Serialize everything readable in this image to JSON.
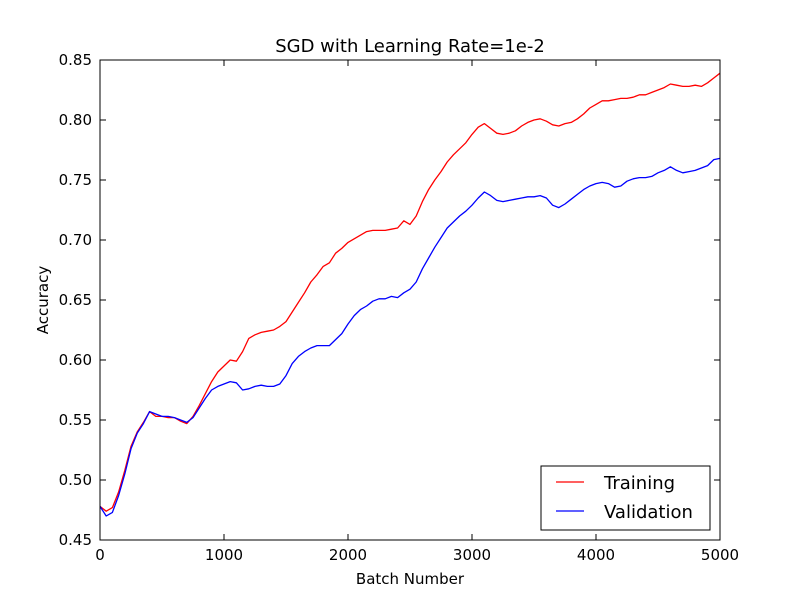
{
  "chart_data": {
    "type": "line",
    "title": "SGD with Learning Rate=1e-2",
    "xlabel": "Batch Number",
    "ylabel": "Accuracy",
    "xlim": [
      0,
      5000
    ],
    "ylim": [
      0.45,
      0.85
    ],
    "xticks": [
      0,
      1000,
      2000,
      3000,
      4000,
      5000
    ],
    "xtick_labels": [
      "0",
      "1000",
      "2000",
      "3000",
      "4000",
      "5000"
    ],
    "yticks": [
      0.45,
      0.5,
      0.55,
      0.6,
      0.65,
      0.7,
      0.75,
      0.8,
      0.85
    ],
    "ytick_labels": [
      "0.45",
      "0.50",
      "0.55",
      "0.60",
      "0.65",
      "0.70",
      "0.75",
      "0.80",
      "0.85"
    ],
    "grid": false,
    "legend_position": "lower-right",
    "series": [
      {
        "name": "Training",
        "color": "#ff0000",
        "x": [
          0,
          50,
          100,
          150,
          200,
          250,
          300,
          350,
          400,
          450,
          500,
          550,
          600,
          650,
          700,
          750,
          800,
          850,
          900,
          950,
          1000,
          1050,
          1100,
          1150,
          1200,
          1250,
          1300,
          1350,
          1400,
          1450,
          1500,
          1550,
          1600,
          1650,
          1700,
          1750,
          1800,
          1850,
          1900,
          1950,
          2000,
          2050,
          2100,
          2150,
          2200,
          2250,
          2300,
          2350,
          2400,
          2450,
          2500,
          2550,
          2600,
          2650,
          2700,
          2750,
          2800,
          2850,
          2900,
          2950,
          3000,
          3050,
          3100,
          3150,
          3200,
          3250,
          3300,
          3350,
          3400,
          3450,
          3500,
          3550,
          3600,
          3650,
          3700,
          3750,
          3800,
          3850,
          3900,
          3950,
          4000,
          4050,
          4100,
          4150,
          4200,
          4250,
          4300,
          4350,
          4400,
          4450,
          4500,
          4550,
          4600,
          4650,
          4700,
          4750,
          4800,
          4850,
          4900,
          4950,
          5000
        ],
        "values": [
          0.478,
          0.474,
          0.477,
          0.49,
          0.508,
          0.528,
          0.54,
          0.548,
          0.557,
          0.553,
          0.553,
          0.552,
          0.552,
          0.549,
          0.547,
          0.553,
          0.562,
          0.572,
          0.582,
          0.59,
          0.595,
          0.6,
          0.599,
          0.607,
          0.618,
          0.621,
          0.623,
          0.624,
          0.625,
          0.628,
          0.632,
          0.64,
          0.648,
          0.656,
          0.665,
          0.671,
          0.678,
          0.681,
          0.689,
          0.693,
          0.698,
          0.701,
          0.704,
          0.707,
          0.708,
          0.708,
          0.708,
          0.709,
          0.71,
          0.716,
          0.713,
          0.72,
          0.732,
          0.742,
          0.75,
          0.757,
          0.765,
          0.771,
          0.776,
          0.781,
          0.788,
          0.794,
          0.797,
          0.793,
          0.789,
          0.788,
          0.789,
          0.791,
          0.795,
          0.798,
          0.8,
          0.801,
          0.799,
          0.796,
          0.795,
          0.797,
          0.798,
          0.801,
          0.805,
          0.81,
          0.813,
          0.816,
          0.816,
          0.817,
          0.818,
          0.818,
          0.819,
          0.821,
          0.821,
          0.823,
          0.825,
          0.827,
          0.83,
          0.829,
          0.828,
          0.828,
          0.829,
          0.828,
          0.831,
          0.835,
          0.839
        ]
      },
      {
        "name": "Validation",
        "color": "#0000ff",
        "x": [
          0,
          50,
          100,
          150,
          200,
          250,
          300,
          350,
          400,
          450,
          500,
          550,
          600,
          650,
          700,
          750,
          800,
          850,
          900,
          950,
          1000,
          1050,
          1100,
          1150,
          1200,
          1250,
          1300,
          1350,
          1400,
          1450,
          1500,
          1550,
          1600,
          1650,
          1700,
          1750,
          1800,
          1850,
          1900,
          1950,
          2000,
          2050,
          2100,
          2150,
          2200,
          2250,
          2300,
          2350,
          2400,
          2450,
          2500,
          2550,
          2600,
          2650,
          2700,
          2750,
          2800,
          2850,
          2900,
          2950,
          3000,
          3050,
          3100,
          3150,
          3200,
          3250,
          3300,
          3350,
          3400,
          3450,
          3500,
          3550,
          3600,
          3650,
          3700,
          3750,
          3800,
          3850,
          3900,
          3950,
          4000,
          4050,
          4100,
          4150,
          4200,
          4250,
          4300,
          4350,
          4400,
          4450,
          4500,
          4550,
          4600,
          4650,
          4700,
          4750,
          4800,
          4850,
          4900,
          4950,
          5000
        ],
        "values": [
          0.478,
          0.47,
          0.473,
          0.487,
          0.505,
          0.526,
          0.539,
          0.547,
          0.557,
          0.555,
          0.553,
          0.553,
          0.552,
          0.55,
          0.548,
          0.552,
          0.56,
          0.568,
          0.575,
          0.578,
          0.58,
          0.582,
          0.581,
          0.575,
          0.576,
          0.578,
          0.579,
          0.578,
          0.578,
          0.58,
          0.587,
          0.597,
          0.603,
          0.607,
          0.61,
          0.612,
          0.612,
          0.612,
          0.617,
          0.622,
          0.63,
          0.637,
          0.642,
          0.645,
          0.649,
          0.651,
          0.651,
          0.653,
          0.652,
          0.656,
          0.659,
          0.665,
          0.676,
          0.685,
          0.694,
          0.702,
          0.71,
          0.715,
          0.72,
          0.724,
          0.729,
          0.735,
          0.74,
          0.737,
          0.733,
          0.732,
          0.733,
          0.734,
          0.735,
          0.736,
          0.736,
          0.737,
          0.735,
          0.729,
          0.727,
          0.73,
          0.734,
          0.738,
          0.742,
          0.745,
          0.747,
          0.748,
          0.747,
          0.744,
          0.745,
          0.749,
          0.751,
          0.752,
          0.752,
          0.753,
          0.756,
          0.758,
          0.761,
          0.758,
          0.756,
          0.757,
          0.758,
          0.76,
          0.762,
          0.767,
          0.768
        ]
      }
    ]
  }
}
